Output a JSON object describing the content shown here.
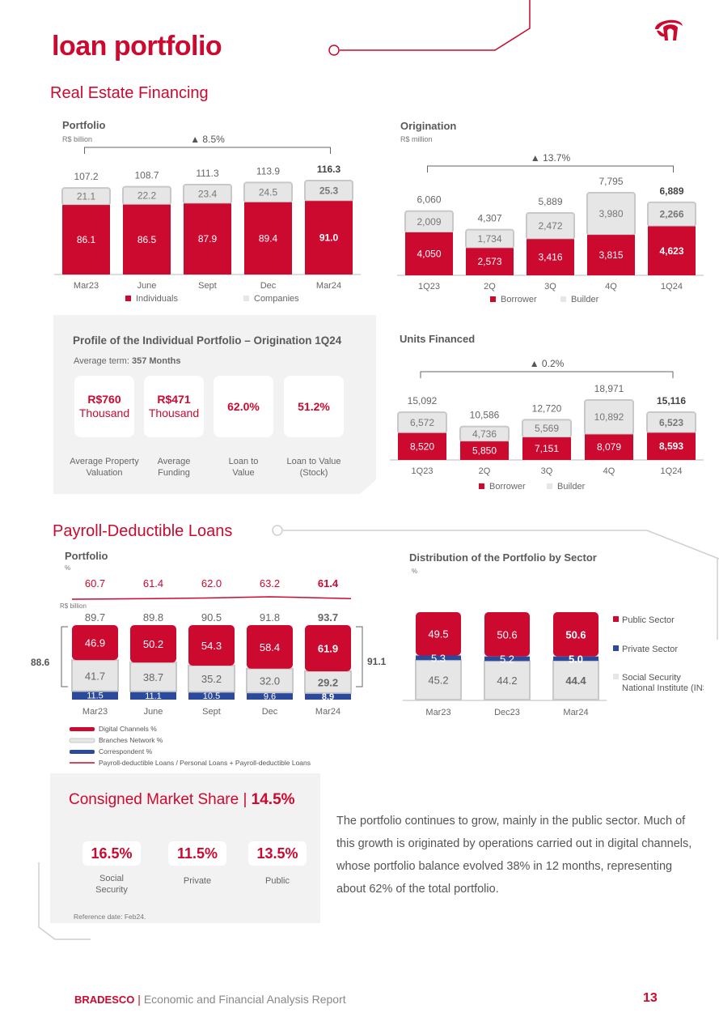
{
  "page": {
    "title": "loan portfolio",
    "footer_brand": "BRADESCO",
    "footer_sep": " | ",
    "footer_text": "Economic and Financial Analysis Report",
    "page_number": "13"
  },
  "real_estate": {
    "section_title": "Real Estate Financing",
    "profile": {
      "title": "Profile of the Individual Portfolio – Origination 1Q24",
      "term_label": "Average term: ",
      "term_value": "357 Months",
      "cards": [
        {
          "value": "R$760",
          "sub": "Thousand",
          "label": "Average Property Valuation"
        },
        {
          "value": "R$471",
          "sub": "Thousand",
          "label": "Average Funding"
        },
        {
          "value": "62.0%",
          "sub": "",
          "label": "Loan to Value"
        },
        {
          "value": "51.2%",
          "sub": "",
          "label": "Loan to Value (Stock)"
        }
      ]
    }
  },
  "payroll": {
    "section_title": "Payroll-Deductible Loans",
    "market_share": {
      "title": "Consigned Market Share | ",
      "title_value": "14.5%",
      "items": [
        {
          "value": "16.5%",
          "label": "Social Security"
        },
        {
          "value": "11.5%",
          "label": "Private"
        },
        {
          "value": "13.5%",
          "label": "Public"
        }
      ],
      "reference": "Reference date: Feb24."
    },
    "paragraph": "The portfolio continues to grow, mainly in the public sector. Much of this growth is originated by operations carried out in digital channels, whose portfolio balance evolved 38% in 12 months, representing about 62% of the total portfolio."
  },
  "colors": {
    "red": "#cc092f",
    "gray": "#e6e6e6",
    "blue": "#2b4a9b",
    "text": "#555555"
  },
  "chart_data": [
    {
      "id": "re-portfolio",
      "type": "bar",
      "title": "Portfolio",
      "unit": "R$ billion",
      "growth": "▲ 8.5%",
      "categories": [
        "Mar23",
        "June",
        "Sept",
        "Dec",
        "Mar24"
      ],
      "totals": [
        "107.2",
        "108.7",
        "111.3",
        "113.9",
        "116.3"
      ],
      "series": [
        {
          "name": "Individuals",
          "values": [
            86.1,
            86.5,
            87.9,
            89.4,
            91.0
          ],
          "labels": [
            "86.1",
            "86.5",
            "87.9",
            "89.4",
            "91.0"
          ]
        },
        {
          "name": "Companies",
          "values": [
            21.1,
            22.2,
            23.4,
            24.5,
            25.3
          ],
          "labels": [
            "21.1",
            "22.2",
            "23.4",
            "24.5",
            "25.3"
          ]
        }
      ]
    },
    {
      "id": "re-origination",
      "type": "bar",
      "title": "Origination",
      "unit": "R$ million",
      "growth": "▲ 13.7%",
      "categories": [
        "1Q23",
        "2Q",
        "3Q",
        "4Q",
        "1Q24"
      ],
      "totals": [
        "6,060",
        "4,307",
        "5,889",
        "7,795",
        "6,889"
      ],
      "series": [
        {
          "name": "Borrower",
          "values": [
            4050,
            2573,
            3416,
            3815,
            4623
          ],
          "labels": [
            "4,050",
            "2,573",
            "3,416",
            "3,815",
            "4,623"
          ]
        },
        {
          "name": "Builder",
          "values": [
            2009,
            1734,
            2472,
            3980,
            2266
          ],
          "labels": [
            "2,009",
            "1,734",
            "2,472",
            "3,980",
            "2,266"
          ]
        }
      ]
    },
    {
      "id": "re-units",
      "type": "bar",
      "title": "Units Financed",
      "unit": "",
      "growth": "▲ 0.2%",
      "categories": [
        "1Q23",
        "2Q",
        "3Q",
        "4Q",
        "1Q24"
      ],
      "totals": [
        "15,092",
        "10,586",
        "12,720",
        "18,971",
        "15,116"
      ],
      "series": [
        {
          "name": "Borrower",
          "values": [
            8520,
            5850,
            7151,
            8079,
            8593
          ],
          "labels": [
            "8,520",
            "5,850",
            "7,151",
            "8,079",
            "8,593"
          ]
        },
        {
          "name": "Builder",
          "values": [
            6572,
            4736,
            5569,
            10892,
            6523
          ],
          "labels": [
            "6,572",
            "4,736",
            "5,569",
            "10,892",
            "6,523"
          ]
        }
      ]
    },
    {
      "id": "payroll-portfolio",
      "type": "bar",
      "title": "Portfolio",
      "unit": "%",
      "unit2": "R$ billion",
      "categories": [
        "Mar23",
        "June",
        "Sept",
        "Dec",
        "Mar24"
      ],
      "totals": [
        "89.7",
        "89.8",
        "90.5",
        "91.8",
        "93.7"
      ],
      "line": {
        "name": "Payroll-deductible Loans / Personal Loans + Payroll-deductible Loans",
        "values": [
          60.7,
          61.4,
          62.0,
          63.2,
          61.4
        ],
        "labels": [
          "60.7",
          "61.4",
          "62.0",
          "63.2",
          "61.4"
        ]
      },
      "side_left": "88.6",
      "side_right": "91.1",
      "series": [
        {
          "name": "Correspondent %",
          "values": [
            11.5,
            11.1,
            10.5,
            9.6,
            8.9
          ],
          "labels": [
            "11.5",
            "11.1",
            "10.5",
            "9.6",
            "8.9"
          ]
        },
        {
          "name": "Branches Network %",
          "values": [
            41.7,
            38.7,
            35.2,
            32.0,
            29.2
          ],
          "labels": [
            "41.7",
            "38.7",
            "35.2",
            "32.0",
            "29.2"
          ]
        },
        {
          "name": "Digital Channels %",
          "values": [
            46.9,
            50.2,
            54.3,
            58.4,
            61.9
          ],
          "labels": [
            "46.9",
            "50.2",
            "54.3",
            "58.4",
            "61.9"
          ]
        }
      ]
    },
    {
      "id": "payroll-sector",
      "type": "bar",
      "title": "Distribution of the Portfolio by Sector",
      "unit": "%",
      "categories": [
        "Mar23",
        "Dec23",
        "Mar24"
      ],
      "series": [
        {
          "name": "Social Security National Institute (INSS)",
          "values": [
            45.2,
            44.2,
            44.4
          ],
          "labels": [
            "45.2",
            "44.2",
            "44.4"
          ]
        },
        {
          "name": "Private Sector",
          "values": [
            5.3,
            5.2,
            5.0
          ],
          "labels": [
            "5.3",
            "5.2",
            "5.0"
          ]
        },
        {
          "name": "Public Sector",
          "values": [
            49.5,
            50.6,
            50.6
          ],
          "labels": [
            "49.5",
            "50.6",
            "50.6"
          ]
        }
      ]
    }
  ]
}
